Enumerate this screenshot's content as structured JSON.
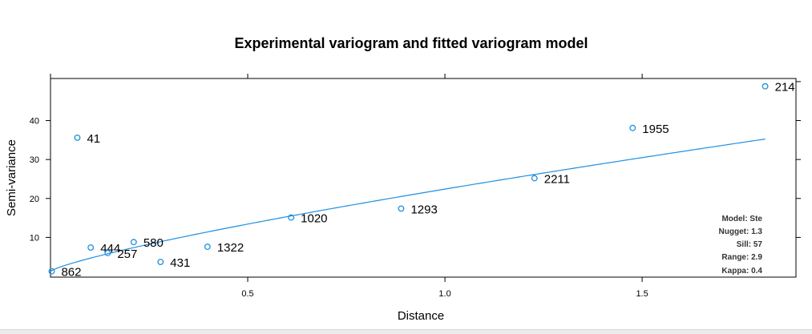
{
  "chart_data": {
    "type": "scatter",
    "title": "Experimental variogram and fitted variogram model",
    "xlabel": "Distance",
    "ylabel": "Semi-variance",
    "xlim": [
      0,
      1.89
    ],
    "ylim": [
      -0.2,
      50.8
    ],
    "x_ticks": [
      0.5,
      1.0,
      1.5
    ],
    "x_tick_labels": [
      "0.5",
      "1.0",
      "1.5"
    ],
    "y_ticks": [
      10,
      20,
      30,
      40
    ],
    "y_tick_labels": [
      "10",
      "20",
      "30",
      "40"
    ],
    "top_ticks": [
      0.0,
      0.5,
      1.0,
      1.5
    ],
    "right_ticks": [
      10,
      20,
      30,
      40,
      50
    ],
    "grid": false,
    "point_color": "#1f8fe0",
    "line_color": "#1f8fe0",
    "points": [
      {
        "x": 0.003,
        "y": 1.3,
        "label": "862"
      },
      {
        "x": 0.068,
        "y": 35.6,
        "label": "41"
      },
      {
        "x": 0.102,
        "y": 7.4,
        "label": "444"
      },
      {
        "x": 0.145,
        "y": 6.0,
        "label": "257"
      },
      {
        "x": 0.211,
        "y": 8.8,
        "label": "580"
      },
      {
        "x": 0.279,
        "y": 3.7,
        "label": "431"
      },
      {
        "x": 0.398,
        "y": 7.6,
        "label": "1322"
      },
      {
        "x": 0.61,
        "y": 15.1,
        "label": "1020"
      },
      {
        "x": 0.889,
        "y": 17.4,
        "label": "1293"
      },
      {
        "x": 1.227,
        "y": 25.2,
        "label": "2211"
      },
      {
        "x": 1.476,
        "y": 38.1,
        "label": "1955"
      },
      {
        "x": 1.812,
        "y": 48.8,
        "label": "214"
      }
    ],
    "model": {
      "model_label": "Model: Ste",
      "nugget_label": "Nugget: 1.3",
      "sill_label": "Sill: 57",
      "range_label": "Range: 2.9",
      "kappa_label": "Kappa: 0.4",
      "nugget": 1.3,
      "sill": 57,
      "range": 2.9,
      "kappa": 0.4
    }
  }
}
